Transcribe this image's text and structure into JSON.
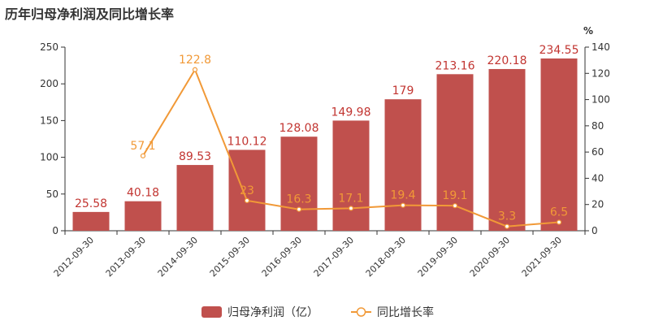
{
  "chart_data": {
    "type": "bar+line",
    "title": "历年归母净利润及同比增长率",
    "categories": [
      "2012-09-30",
      "2013-09-30",
      "2014-09-30",
      "2015-09-30",
      "2016-09-30",
      "2017-09-30",
      "2018-09-30",
      "2019-09-30",
      "2020-09-30",
      "2021-09-30"
    ],
    "series": [
      {
        "name": "归母净利润（亿）",
        "type": "bar",
        "axis": "left",
        "color": "#c0504d",
        "values": [
          25.58,
          40.18,
          89.53,
          110.12,
          128.08,
          149.98,
          179,
          213.16,
          220.18,
          234.55
        ],
        "labels": [
          "25.58",
          "40.18",
          "89.53",
          "110.12",
          "128.08",
          "149.98",
          "179",
          "213.16",
          "220.18",
          "234.55"
        ]
      },
      {
        "name": "同比增长率",
        "type": "line",
        "axis": "right",
        "color": "#f19937",
        "values": [
          null,
          57.1,
          122.8,
          23,
          16.3,
          17.1,
          19.4,
          19.1,
          3.3,
          6.5
        ],
        "labels": [
          "",
          "57.1",
          "122.8",
          "23",
          "16.3",
          "17.1",
          "19.4",
          "19.1",
          "3.3",
          "6.5"
        ]
      }
    ],
    "y_left": {
      "range": [
        0,
        250
      ],
      "ticks": [
        "0",
        "50",
        "100",
        "150",
        "200",
        "250"
      ]
    },
    "y_right": {
      "range": [
        0,
        140
      ],
      "ticks": [
        "0",
        "20",
        "40",
        "60",
        "80",
        "100",
        "120",
        "140"
      ],
      "unit": "%"
    },
    "legend": {
      "placement": "bottom-center",
      "items": [
        "归母净利润（亿）",
        "同比增长率"
      ]
    },
    "grid": false
  }
}
